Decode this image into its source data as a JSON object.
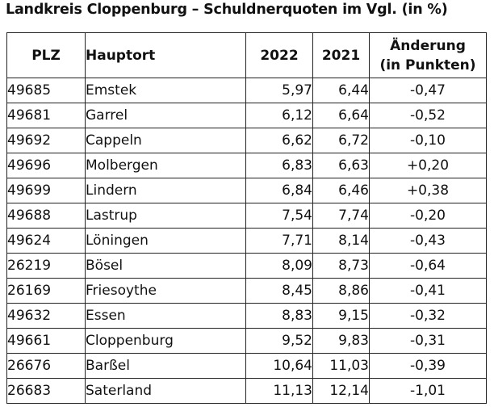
{
  "title": "Landkreis Cloppenburg – Schuldnerquoten im Vgl. (in %)",
  "table": {
    "headers": {
      "plz": "PLZ",
      "hauptort": "Hauptort",
      "y2022": "2022",
      "y2021": "2021",
      "change_line1": "Änderung",
      "change_line2": "(in Punkten)"
    },
    "rows": [
      {
        "plz": "49685",
        "hauptort": "Emstek",
        "y2022": "5,97",
        "y2021": "6,44",
        "change": "-0,47"
      },
      {
        "plz": "49681",
        "hauptort": "Garrel",
        "y2022": "6,12",
        "y2021": "6,64",
        "change": "-0,52"
      },
      {
        "plz": "49692",
        "hauptort": "Cappeln",
        "y2022": "6,62",
        "y2021": "6,72",
        "change": "-0,10"
      },
      {
        "plz": "49696",
        "hauptort": "Molbergen",
        "y2022": "6,83",
        "y2021": "6,63",
        "change": "+0,20"
      },
      {
        "plz": "49699",
        "hauptort": "Lindern",
        "y2022": "6,84",
        "y2021": "6,46",
        "change": "+0,38"
      },
      {
        "plz": "49688",
        "hauptort": "Lastrup",
        "y2022": "7,54",
        "y2021": "7,74",
        "change": "-0,20"
      },
      {
        "plz": "49624",
        "hauptort": "Löningen",
        "y2022": "7,71",
        "y2021": "8,14",
        "change": "-0,43"
      },
      {
        "plz": "26219",
        "hauptort": "Bösel",
        "y2022": "8,09",
        "y2021": "8,73",
        "change": "-0,64"
      },
      {
        "plz": "26169",
        "hauptort": "Friesoythe",
        "y2022": "8,45",
        "y2021": "8,86",
        "change": "-0,41"
      },
      {
        "plz": "49632",
        "hauptort": "Essen",
        "y2022": "8,83",
        "y2021": "9,15",
        "change": "-0,32"
      },
      {
        "plz": "49661",
        "hauptort": "Cloppenburg",
        "y2022": "9,52",
        "y2021": "9,83",
        "change": "-0,31"
      },
      {
        "plz": "26676",
        "hauptort": "Barßel",
        "y2022": "10,64",
        "y2021": "11,03",
        "change": "-0,39"
      },
      {
        "plz": "26683",
        "hauptort": "Saterland",
        "y2022": "11,13",
        "y2021": "12,14",
        "change": "-1,01"
      }
    ]
  }
}
